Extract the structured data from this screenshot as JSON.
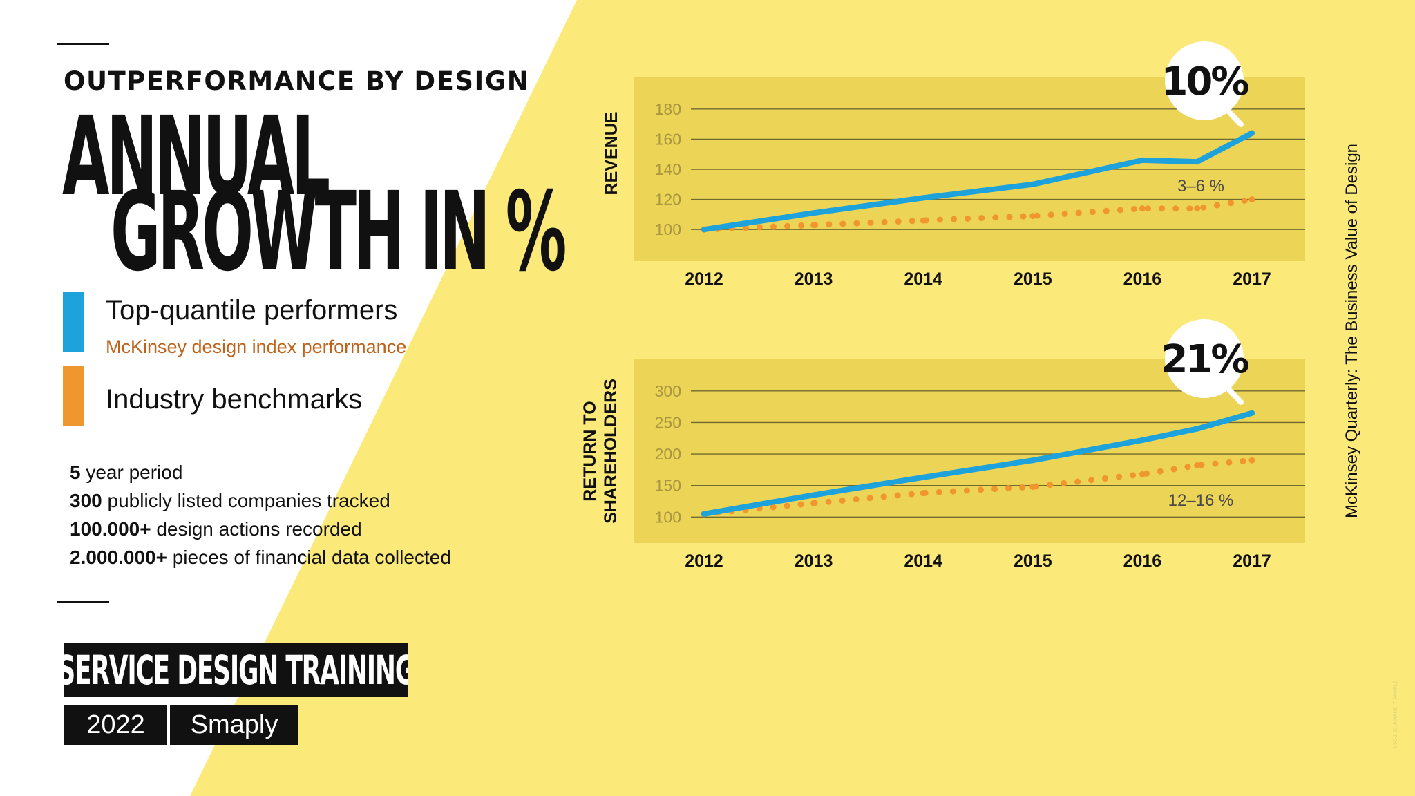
{
  "theme": {
    "yellow": "#fbe97a",
    "panel": "#ecd457",
    "blue": "#1ea2dc",
    "orange": "#f0962e",
    "legend_sub_color": "#c0621a",
    "gridline": "#6f6a30"
  },
  "eyebrow": "OUTPERFORMANCE BY DESIGN",
  "headline": {
    "line1": "ANNUAL",
    "line2": "GROWTH IN %"
  },
  "legend": [
    {
      "label": "Top-quantile performers",
      "sublabel": "McKinsey design index performance",
      "color": "#1ea2dc"
    },
    {
      "label": "Industry benchmarks",
      "sublabel": "",
      "color": "#f0962e"
    }
  ],
  "stats": [
    {
      "value": "5",
      "text": "year period"
    },
    {
      "value": "300",
      "text": "publicly listed companies tracked"
    },
    {
      "value": "100.000+",
      "text": "design actions recorded"
    },
    {
      "value": "2.000.000+",
      "text": "pieces of financial data collected"
    }
  ],
  "footer": {
    "training": "SERVICE DESIGN TRAINING",
    "year": "2022",
    "brand": "Smaply"
  },
  "source": "McKinsey Quarterly: The Business Value of Design",
  "fine_print": "LSC-1 2018 MAKE IT SAMPLE",
  "chart_data": [
    {
      "type": "line",
      "ylabel": "REVENUE",
      "xlabel": "",
      "x": [
        2012,
        2013,
        2014,
        2015,
        2016,
        2016.5,
        2017
      ],
      "x_ticks": [
        "2012",
        "2013",
        "2014",
        "2015",
        "2016",
        "2017"
      ],
      "x_range": [
        2012,
        2017
      ],
      "ylim": [
        90,
        190
      ],
      "y_ticks": [
        100,
        120,
        140,
        160,
        180
      ],
      "grid": true,
      "series": [
        {
          "name": "Top-quantile performers",
          "style": "solid",
          "color": "#1ea2dc",
          "values": [
            100,
            111,
            121,
            130,
            146,
            145,
            164
          ]
        },
        {
          "name": "Industry benchmarks",
          "style": "dotted",
          "color": "#f0962e",
          "values": [
            100,
            103,
            106,
            109,
            114,
            114,
            120
          ]
        }
      ],
      "badge": "10%",
      "annotation": "3–6 %"
    },
    {
      "type": "line",
      "ylabel": "RETURN TO SHAREHOLDERS",
      "xlabel": "",
      "x": [
        2012,
        2013,
        2014,
        2015,
        2016,
        2016.5,
        2017
      ],
      "x_ticks": [
        "2012",
        "2013",
        "2014",
        "2015",
        "2016",
        "2017"
      ],
      "x_range": [
        2012,
        2017
      ],
      "ylim": [
        85,
        325
      ],
      "y_ticks": [
        100,
        150,
        200,
        250,
        300
      ],
      "grid": true,
      "series": [
        {
          "name": "Top-quantile performers",
          "style": "solid",
          "color": "#1ea2dc",
          "values": [
            105,
            135,
            163,
            190,
            222,
            240,
            265
          ]
        },
        {
          "name": "Industry benchmarks",
          "style": "dotted",
          "color": "#f0962e",
          "values": [
            105,
            122,
            138,
            148,
            168,
            182,
            190
          ]
        }
      ],
      "badge": "21%",
      "annotation": "12–16 %"
    }
  ]
}
